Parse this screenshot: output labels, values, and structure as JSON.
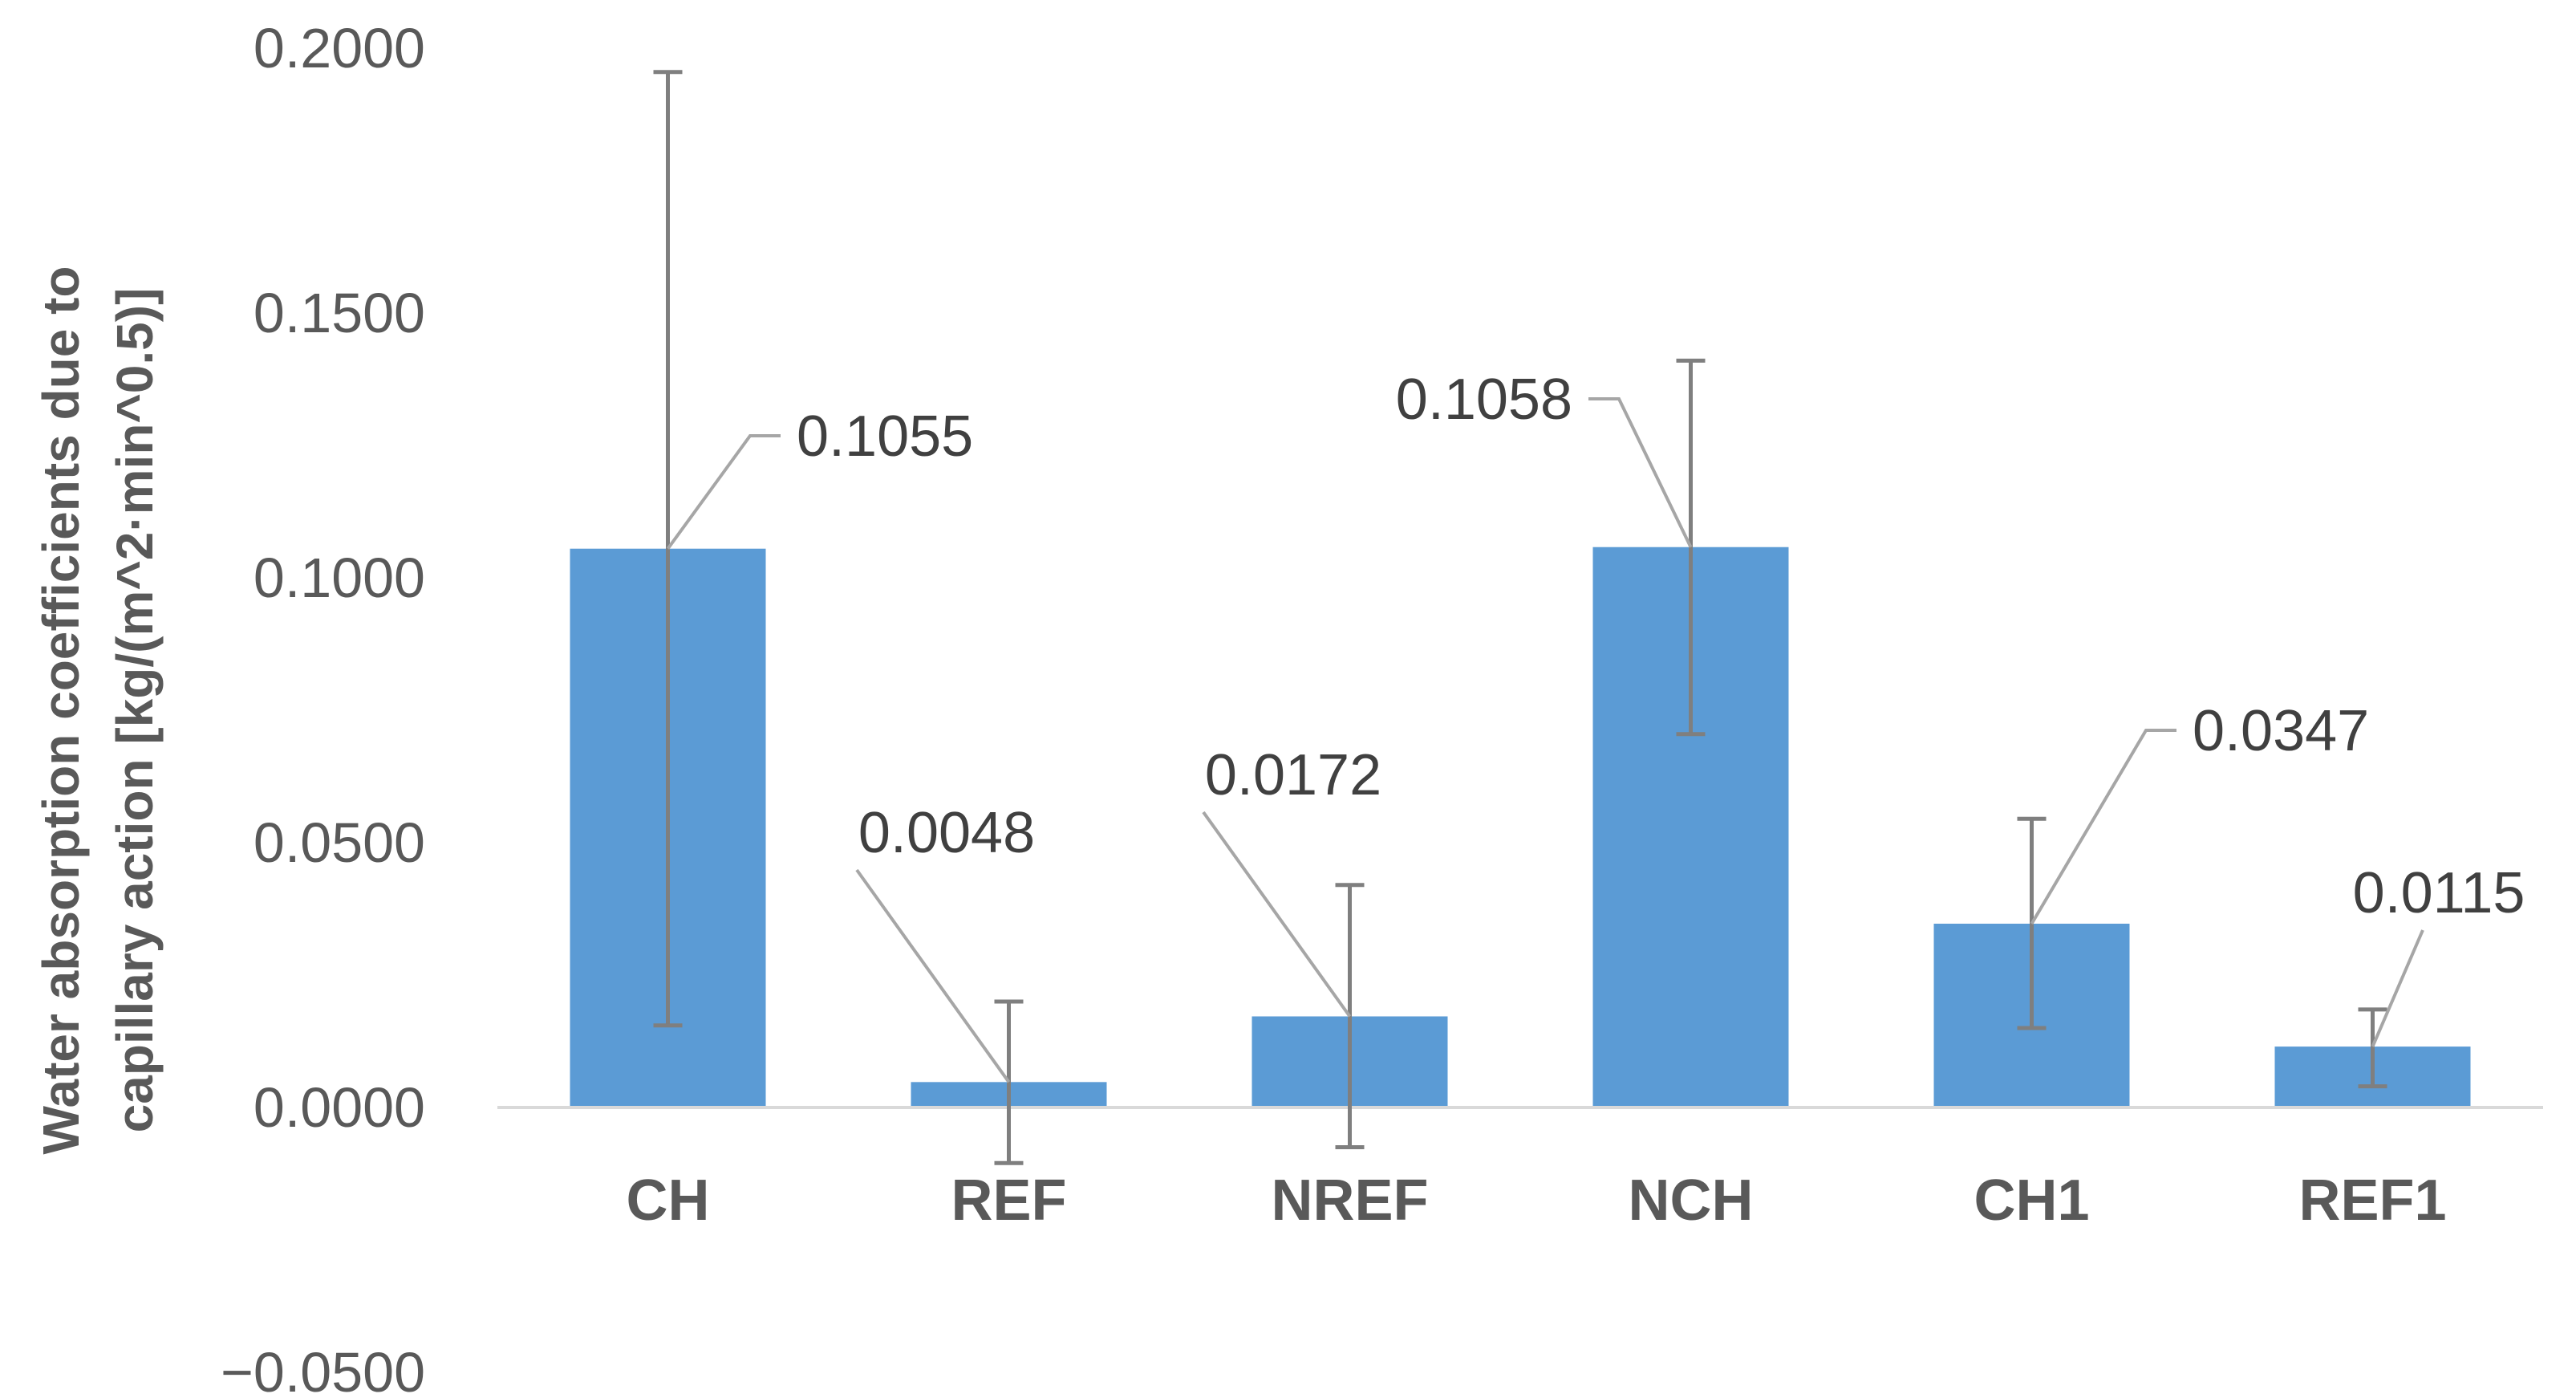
{
  "chart_data": {
    "type": "bar",
    "title": "",
    "xlabel": "",
    "ylabel_lines": [
      "Water absorption coefficients due to",
      "capillary action [kg/(m^2·min^0.5)]"
    ],
    "categories": [
      "CH",
      "REF",
      "NREF",
      "NCH",
      "CH1",
      "REF1"
    ],
    "series": [
      {
        "values": [
          0.1055,
          0.0048,
          0.0172,
          0.1058,
          0.0347,
          0.0115
        ],
        "error_low": [
          0.0155,
          -0.0105,
          -0.0075,
          0.0705,
          0.015,
          0.004
        ],
        "error_high": [
          0.1955,
          0.02,
          0.042,
          0.141,
          0.0545,
          0.0185
        ]
      }
    ],
    "data_labels": [
      "0.1055",
      "0.0048",
      "0.0172",
      "0.1058",
      "0.0347",
      "0.0115"
    ],
    "ylim": [
      -0.05,
      0.2
    ],
    "yticks": [
      -0.05,
      0,
      0.05,
      0.1,
      0.15,
      0.2
    ],
    "ytick_labels": [
      "−0.0500",
      "0.0000",
      "0.0500",
      "0.1000",
      "0.1500",
      "0.2000"
    ],
    "grid": false,
    "legend": "none",
    "colors": {
      "bar": "#5B9BD5",
      "error_bar": "#7F7F7F",
      "leader_line": "#A6A6A6",
      "axis_line": "#D9D9D9",
      "tick_text": "#595959",
      "category_text": "#595959",
      "data_label_text": "#404040",
      "axis_title_text": "#595959"
    }
  }
}
